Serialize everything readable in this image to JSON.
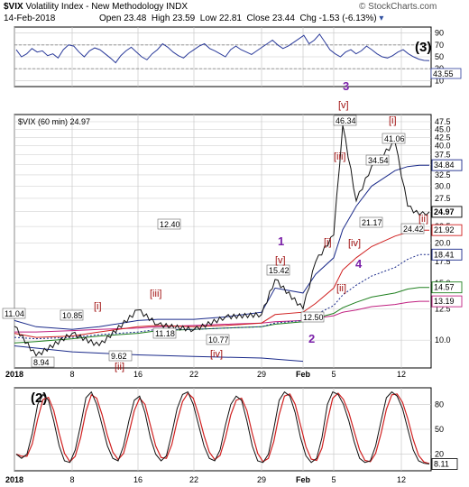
{
  "header": {
    "symbol": "$VIX",
    "name": "Volatility Index - New Methodology",
    "exchange": "INDX",
    "date": "14-Feb-2018",
    "open_label": "Open",
    "open": "23.48",
    "high_label": "High",
    "high": "23.59",
    "low_label": "Low",
    "low": "22.81",
    "close_label": "Close",
    "close": "23.44",
    "chg_label": "Chg",
    "chg": "-1.53 (-6.13%)",
    "watermark": "© StockCharts.com"
  },
  "top_panel": {
    "tag": "(3)",
    "value": "43.55",
    "ticks": [
      "90",
      "70",
      "50",
      "30",
      "10"
    ]
  },
  "main_panel": {
    "legend": "$VIX (60 min) 24.97",
    "ticks": [
      "47.5",
      "45.0",
      "42.5",
      "40.0",
      "37.5",
      "35.0",
      "32.5",
      "30.0",
      "27.5",
      "25.0",
      "22.5",
      "20.0",
      "17.5",
      "15.0",
      "12.5",
      "10.0"
    ],
    "right_tags": [
      {
        "text": "34.84",
        "value": 34.84,
        "color": "#1a2a8a"
      },
      {
        "text": "24.97",
        "value": 24.97,
        "color": "#000000",
        "bold": true
      },
      {
        "text": "21.92",
        "value": 21.92,
        "color": "#d02020"
      },
      {
        "text": "18.41",
        "value": 18.41,
        "color": "#1a2a8a"
      },
      {
        "text": "14.57",
        "value": 14.57,
        "color": "#208020"
      },
      {
        "text": "13.19",
        "value": 13.19,
        "color": "#c02080"
      }
    ],
    "price_labels": [
      {
        "text": "11.04"
      },
      {
        "text": "10.85"
      },
      {
        "text": "8.94"
      },
      {
        "text": "9.62"
      },
      {
        "text": "12.40"
      },
      {
        "text": "11.18"
      },
      {
        "text": "10.77"
      },
      {
        "text": "15.42"
      },
      {
        "text": "12.50"
      },
      {
        "text": "46.34"
      },
      {
        "text": "41.06"
      },
      {
        "text": "34.54"
      },
      {
        "text": "24.42"
      },
      {
        "text": "21.17"
      }
    ],
    "wave_labels": [
      {
        "text": "[i]",
        "kind": "red"
      },
      {
        "text": "[ii]",
        "kind": "red"
      },
      {
        "text": "[iii]",
        "kind": "red"
      },
      {
        "text": "[iv]",
        "kind": "red"
      },
      {
        "text": "[v]",
        "kind": "red"
      },
      {
        "text": "[i]",
        "kind": "red"
      },
      {
        "text": "[ii]",
        "kind": "red"
      },
      {
        "text": "[iii]",
        "kind": "red"
      },
      {
        "text": "[iv]",
        "kind": "red"
      },
      {
        "text": "[v]",
        "kind": "red"
      },
      {
        "text": "[i]",
        "kind": "red"
      },
      {
        "text": "[ii]",
        "kind": "red"
      },
      {
        "text": "1",
        "kind": "purple"
      },
      {
        "text": "2",
        "kind": "purple"
      },
      {
        "text": "3",
        "kind": "purple"
      },
      {
        "text": "4",
        "kind": "purple"
      }
    ]
  },
  "bottom_panel": {
    "tag": "(2)",
    "value": "8.11",
    "ticks": [
      "80",
      "50",
      "20"
    ]
  },
  "x_axis": {
    "labels": [
      "2018",
      "8",
      "16",
      "22",
      "29",
      "Feb",
      "5",
      "12"
    ]
  },
  "colors": {
    "price": "#111111",
    "upper_band": "#1a2a8a",
    "red_ma": "#d02020",
    "dotted_ma": "#1a2a8a",
    "green_ma": "#208020",
    "magenta_ma": "#c02080",
    "grid": "#c8c8c8",
    "wave_red": "#a01010",
    "wave_purple": "#7a1fa8"
  },
  "chart_data": [
    {
      "type": "line",
      "panel": "top indicator (3)",
      "ylim": [
        0,
        100
      ],
      "reference_levels": [
        70,
        50,
        30
      ],
      "x": [
        "Jan 2",
        "Jan 8",
        "Jan 16",
        "Jan 22",
        "Jan 29",
        "Feb 1",
        "Feb 5",
        "Feb 12",
        "Feb 14"
      ],
      "series": [
        {
          "values": [
            60,
            55,
            70,
            45,
            75,
            65,
            90,
            50,
            43.55
          ]
        }
      ]
    },
    {
      "type": "line",
      "panel": "main price (60 min)",
      "ylim": [
        7,
        50
      ],
      "scale": "log",
      "x": [
        "2018",
        "Jan 4",
        "Jan 8",
        "Jan 11",
        "Jan 16",
        "Jan 18",
        "Jan 22",
        "Jan 25",
        "Jan 29",
        "Jan 31",
        "Feb 1",
        "Feb 2",
        "Feb 5",
        "Feb 6",
        "Feb 7",
        "Feb 8",
        "Feb 9",
        "Feb 12",
        "Feb 13",
        "Feb 14"
      ],
      "series": [
        {
          "values": [
            11.04,
            8.94,
            10.5,
            9.62,
            12.4,
            11.18,
            10.77,
            11.8,
            12.0,
            15.42,
            12.5,
            17.5,
            21.17,
            46.34,
            27.0,
            34.54,
            41.06,
            26.0,
            24.42,
            24.97
          ]
        },
        {
          "values": [
            11.5,
            11.0,
            10.8,
            11.0,
            11.5,
            11.6,
            11.6,
            11.8,
            12.2,
            14.5,
            14.0,
            16.0,
            18.0,
            22.0,
            26.0,
            30.0,
            33.5,
            34.5,
            34.84,
            34.84
          ]
        },
        {
          "values": [
            10.5,
            10.2,
            10.3,
            10.6,
            11.0,
            11.1,
            11.0,
            11.1,
            11.3,
            12.0,
            12.2,
            13.0,
            14.5,
            16.5,
            18.0,
            19.5,
            21.0,
            21.6,
            21.92,
            21.92
          ]
        },
        {
          "values": [
            10.2,
            10.1,
            10.2,
            10.4,
            10.6,
            10.8,
            10.8,
            10.9,
            11.0,
            11.3,
            11.5,
            12.0,
            12.8,
            13.8,
            14.8,
            15.8,
            16.8,
            17.8,
            18.41,
            18.41
          ]
        },
        {
          "values": [
            9.8,
            9.9,
            10.1,
            10.3,
            10.5,
            10.7,
            10.8,
            10.9,
            11.0,
            11.2,
            11.4,
            11.7,
            12.1,
            12.6,
            13.1,
            13.6,
            14.0,
            14.4,
            14.57,
            14.57
          ]
        },
        {
          "values": [
            10.6,
            10.6,
            10.7,
            10.8,
            10.9,
            11.0,
            11.1,
            11.2,
            11.3,
            11.4,
            11.5,
            11.7,
            11.9,
            12.2,
            12.4,
            12.7,
            12.9,
            13.1,
            13.19,
            13.19
          ]
        }
      ]
    },
    {
      "type": "line",
      "panel": "bottom oscillator (2)",
      "ylim": [
        0,
        100
      ],
      "reference_levels": [
        80,
        20
      ],
      "x": [
        "2018",
        "Jan 8",
        "Jan 16",
        "Jan 22",
        "Jan 29",
        "Feb 1",
        "Feb 5",
        "Feb 12",
        "Feb 14"
      ],
      "series": [
        {
          "values": [
            20,
            75,
            95,
            10,
            90,
            40,
            95,
            90,
            8.11
          ]
        }
      ]
    }
  ]
}
